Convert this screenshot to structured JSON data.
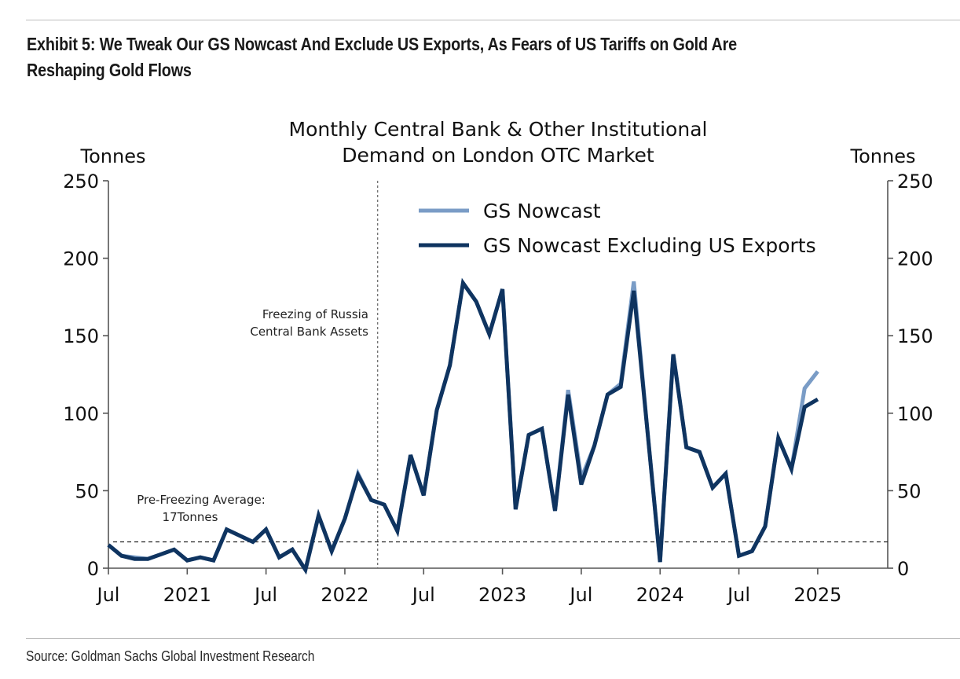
{
  "exhibit": {
    "title": "Exhibit 5: We Tweak Our GS Nowcast And Exclude US Exports, As Fears of US Tariffs on Gold Are Reshaping Gold Flows",
    "source": "Source: Goldman Sachs Global Investment Research"
  },
  "chart_data": {
    "type": "line",
    "title_lines": [
      "Monthly Central Bank & Other Institutional",
      "Demand on London OTC Market"
    ],
    "ylabel_left": "Tonnes",
    "ylabel_right": "Tonnes",
    "ylim": [
      0,
      250
    ],
    "yticks": [
      0,
      50,
      100,
      150,
      200,
      250
    ],
    "xlim": [
      "2020-07",
      "2025-12"
    ],
    "xticks": [
      {
        "date": "2020-07",
        "label": "Jul"
      },
      {
        "date": "2021-01",
        "label": "2021"
      },
      {
        "date": "2021-07",
        "label": "Jul"
      },
      {
        "date": "2022-01",
        "label": "2022"
      },
      {
        "date": "2022-07",
        "label": "Jul"
      },
      {
        "date": "2023-01",
        "label": "2023"
      },
      {
        "date": "2023-07",
        "label": "Jul"
      },
      {
        "date": "2024-01",
        "label": "2024"
      },
      {
        "date": "2024-07",
        "label": "Jul"
      },
      {
        "date": "2025-01",
        "label": "2025"
      }
    ],
    "grid": false,
    "legend": {
      "position": "top-center",
      "entries": [
        "GS Nowcast",
        "GS Nowcast Excluding US Exports"
      ]
    },
    "x": [
      "2020-07",
      "2020-08",
      "2020-09",
      "2020-10",
      "2020-11",
      "2020-12",
      "2021-01",
      "2021-02",
      "2021-03",
      "2021-04",
      "2021-05",
      "2021-06",
      "2021-07",
      "2021-08",
      "2021-09",
      "2021-10",
      "2021-11",
      "2021-12",
      "2022-01",
      "2022-02",
      "2022-03",
      "2022-04",
      "2022-05",
      "2022-06",
      "2022-07",
      "2022-08",
      "2022-09",
      "2022-10",
      "2022-11",
      "2022-12",
      "2023-01",
      "2023-02",
      "2023-03",
      "2023-04",
      "2023-05",
      "2023-06",
      "2023-07",
      "2023-08",
      "2023-09",
      "2023-10",
      "2023-11",
      "2023-12",
      "2024-01",
      "2024-02",
      "2024-03",
      "2024-04",
      "2024-05",
      "2024-06",
      "2024-07",
      "2024-08",
      "2024-09",
      "2024-10",
      "2024-11",
      "2024-12",
      "2025-01"
    ],
    "series": [
      {
        "name": "GS Nowcast",
        "color": "#7a9cc6",
        "values": [
          15,
          8,
          7,
          6,
          9,
          12,
          5,
          7,
          5,
          25,
          21,
          17,
          25,
          7,
          12,
          -1,
          34,
          11,
          32,
          61,
          44,
          41,
          24,
          73,
          47,
          102,
          131,
          184,
          172,
          151,
          180,
          38,
          86,
          90,
          37,
          115,
          58,
          79,
          112,
          119,
          185,
          92,
          4,
          138,
          78,
          75,
          52,
          61,
          8,
          11,
          27,
          84,
          64,
          116,
          127
        ]
      },
      {
        "name": "GS Nowcast Excluding US Exports",
        "color": "#0f3460",
        "values": [
          15,
          8,
          6,
          6,
          9,
          12,
          5,
          7,
          5,
          25,
          21,
          17,
          25,
          7,
          12,
          -1,
          34,
          11,
          32,
          60,
          44,
          41,
          24,
          73,
          47,
          102,
          131,
          184,
          172,
          151,
          180,
          38,
          86,
          90,
          37,
          112,
          54,
          79,
          112,
          117,
          179,
          92,
          4,
          138,
          78,
          75,
          52,
          61,
          8,
          11,
          27,
          84,
          64,
          104,
          109
        ]
      }
    ],
    "reference_lines": [
      {
        "type": "horizontal",
        "value": 17,
        "style": "dashed",
        "label_lines": [
          "Pre-Freezing Average:",
          "17Tonnes"
        ]
      },
      {
        "type": "vertical",
        "date": "2022-03",
        "style": "dotted",
        "label_lines": [
          "Freezing of Russia",
          "Central Bank Assets"
        ]
      }
    ]
  }
}
